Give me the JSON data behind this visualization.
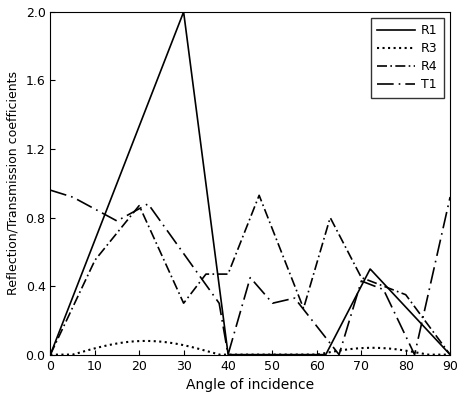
{
  "title": "",
  "xlabel": "Angle of incidence",
  "ylabel": "Reflection/Transmission coefficients",
  "xlim": [
    0,
    90
  ],
  "ylim": [
    0,
    2
  ],
  "xticks": [
    0,
    10,
    20,
    30,
    40,
    50,
    60,
    70,
    80,
    90
  ],
  "yticks": [
    0,
    0.4,
    0.8,
    1.2,
    1.6,
    2.0
  ],
  "background_color": "#ffffff",
  "line_color": "#000000",
  "legend_labels": [
    "R1",
    "R3",
    "R4",
    "T1"
  ]
}
